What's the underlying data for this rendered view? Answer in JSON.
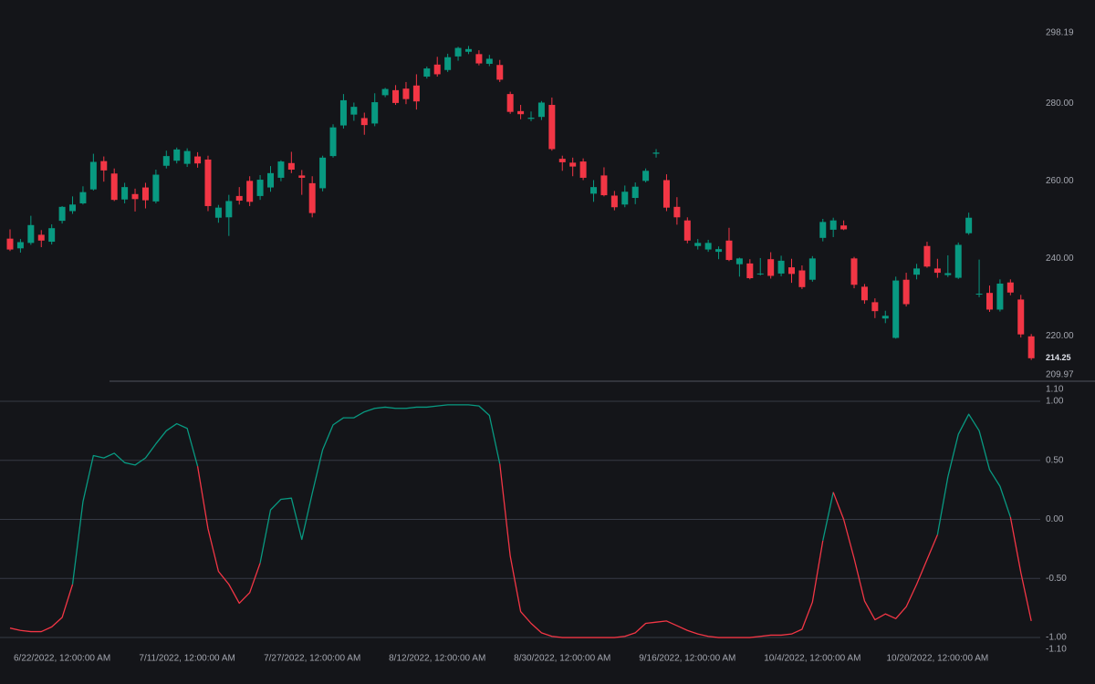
{
  "chart_data": [
    {
      "type": "candlestick",
      "open": [
        245.1,
        242.6,
        244.0,
        246.1,
        244.3,
        249.7,
        252.2,
        254.2,
        257.8,
        265.1,
        261.9,
        255.2,
        256.6,
        258.3,
        254.7,
        263.9,
        265.2,
        264.4,
        266.3,
        265.5,
        250.5,
        250.6,
        256.1,
        260.0,
        256.1,
        258.3,
        260.8,
        264.6,
        261.4,
        259.4,
        258.1,
        266.4,
        274.3,
        277.1,
        276.2,
        274.8,
        282.1,
        283.4,
        283.8,
        284.6,
        286.9,
        290.0,
        288.6,
        292.1,
        293.3,
        292.7,
        290.2,
        289.9,
        282.4,
        278.0,
        276.0,
        276.5,
        279.6,
        265.7,
        264.7,
        265.0,
        256.7,
        261.4,
        256.2,
        253.9,
        255.6,
        260.0,
        267.0,
        260.2,
        253.3,
        249.8,
        243.2,
        242.3,
        241.7,
        244.6,
        238.5,
        238.7,
        236.0,
        239.8,
        236.1,
        237.7,
        236.9,
        234.5,
        245.3,
        247.4,
        248.5,
        240.0,
        232.7,
        228.7,
        224.5,
        219.5,
        234.5,
        235.8,
        243.2,
        237.4,
        235.7,
        235.0,
        246.5,
        230.7,
        231.1,
        226.8,
        233.8,
        229.4,
        219.9
      ],
      "high": [
        247.5,
        245.0,
        251.0,
        247.3,
        248.8,
        253.5,
        256.0,
        258.6,
        267.0,
        266.3,
        263.2,
        259.5,
        258.0,
        259.5,
        262.9,
        267.8,
        268.6,
        268.4,
        267.4,
        266.5,
        253.8,
        256.4,
        258.4,
        261.2,
        261.5,
        263.8,
        265.3,
        267.5,
        262.8,
        261.2,
        266.5,
        274.6,
        282.4,
        280.2,
        277.6,
        282.6,
        284.0,
        284.7,
        285.5,
        287.5,
        289.5,
        292.0,
        292.8,
        294.6,
        294.8,
        293.7,
        292.5,
        291.2,
        283.0,
        279.6,
        277.9,
        280.6,
        281.5,
        266.5,
        266.0,
        265.8,
        260.2,
        263.5,
        257.4,
        258.8,
        259.6,
        263.2,
        268.2,
        261.7,
        255.8,
        250.6,
        245.0,
        244.8,
        243.1,
        247.9,
        240.2,
        239.8,
        240.1,
        241.6,
        240.7,
        239.9,
        238.2,
        240.6,
        250.2,
        250.5,
        249.8,
        240.4,
        233.4,
        229.7,
        226.5,
        235.3,
        236.3,
        238.6,
        244.3,
        239.9,
        240.8,
        244.1,
        251.8,
        239.7,
        233.0,
        234.6,
        234.6,
        230.6,
        220.5
      ],
      "low": [
        241.9,
        241.5,
        243.5,
        242.9,
        243.6,
        249.0,
        251.5,
        253.9,
        257.5,
        259.8,
        254.8,
        254.2,
        252.1,
        252.9,
        254.2,
        263.2,
        264.5,
        263.6,
        263.4,
        252.2,
        249.2,
        245.8,
        253.9,
        253.5,
        255.1,
        257.2,
        259.9,
        262.0,
        256.4,
        250.6,
        257.3,
        266.0,
        273.5,
        275.5,
        271.9,
        274.1,
        281.6,
        279.6,
        279.8,
        278.4,
        286.4,
        286.9,
        288.1,
        291.0,
        292.7,
        289.8,
        289.6,
        285.5,
        277.3,
        275.9,
        275.4,
        275.7,
        267.8,
        262.6,
        261.2,
        260.2,
        254.6,
        256.0,
        252.4,
        253.2,
        254.0,
        259.6,
        266.0,
        252.2,
        248.7,
        243.9,
        242.3,
        241.7,
        239.8,
        239.3,
        235.3,
        234.6,
        235.6,
        234.8,
        235.4,
        233.7,
        232.1,
        234.0,
        244.4,
        245.5,
        247.3,
        232.3,
        228.3,
        224.6,
        223.3,
        219.3,
        227.6,
        234.6,
        237.6,
        235.0,
        235.2,
        234.7,
        246.1,
        230.0,
        226.2,
        226.3,
        230.5,
        219.6,
        213.8
      ],
      "close": [
        242.3,
        244.2,
        248.6,
        244.6,
        247.8,
        253.3,
        253.9,
        257.1,
        264.9,
        262.7,
        255.1,
        258.4,
        255.3,
        255.0,
        261.6,
        266.4,
        268.1,
        267.7,
        264.5,
        253.5,
        253.1,
        254.8,
        254.9,
        254.6,
        260.3,
        262.0,
        265.0,
        262.9,
        260.8,
        251.7,
        266.0,
        273.8,
        280.8,
        279.1,
        274.4,
        280.3,
        283.7,
        280.1,
        281.1,
        280.5,
        289.0,
        287.5,
        291.9,
        294.3,
        294.0,
        290.3,
        291.5,
        286.1,
        277.8,
        277.2,
        276.3,
        280.2,
        268.2,
        264.8,
        263.7,
        260.8,
        258.4,
        256.3,
        253.2,
        257.2,
        258.5,
        262.6,
        267.3,
        253.1,
        250.6,
        244.6,
        244.0,
        244.0,
        242.4,
        239.6,
        240.0,
        234.9,
        236.1,
        235.5,
        239.4,
        236.0,
        232.6,
        240.0,
        249.4,
        249.8,
        247.5,
        233.2,
        229.2,
        226.4,
        225.2,
        234.3,
        228.2,
        237.4,
        237.9,
        236.3,
        236.2,
        243.5,
        250.5,
        230.9,
        226.8,
        233.5,
        231.2,
        220.4,
        214.25
      ],
      "up_color": "#089981",
      "down_color": "#f23645",
      "ylim": [
        209.97,
        298.19
      ],
      "yticks": [
        209.97,
        {
          "value": 220,
          "label": "220.00"
        },
        {
          "value": 240,
          "label": "240.00"
        },
        {
          "value": 260,
          "label": "260.00"
        },
        {
          "value": 280,
          "label": "280.00"
        },
        298.19
      ],
      "grid": false
    },
    {
      "type": "line",
      "categories": [
        null,
        null,
        null,
        null,
        null,
        "6/22/2022, 12:00:00 AM",
        null,
        null,
        null,
        null,
        null,
        null,
        null,
        null,
        null,
        null,
        null,
        "7/11/2022, 12:00:00 AM",
        null,
        null,
        null,
        null,
        null,
        null,
        null,
        null,
        null,
        null,
        null,
        "7/27/2022, 12:00:00 AM",
        null,
        null,
        null,
        null,
        null,
        null,
        null,
        null,
        null,
        null,
        null,
        "8/12/2022, 12:00:00 AM",
        null,
        null,
        null,
        null,
        null,
        null,
        null,
        null,
        null,
        null,
        null,
        "8/30/2022, 12:00:00 AM",
        null,
        null,
        null,
        null,
        null,
        null,
        null,
        null,
        null,
        null,
        null,
        "9/16/2022, 12:00:00 AM",
        null,
        null,
        null,
        null,
        null,
        null,
        null,
        null,
        null,
        null,
        null,
        "10/4/2022, 12:00:00 AM",
        null,
        null,
        null,
        null,
        null,
        null,
        null,
        null,
        null,
        null,
        null,
        "10/20/2022, 12:00:00 AM",
        null,
        null,
        null,
        null,
        null,
        null,
        null,
        null,
        null
      ],
      "values": [
        -0.92,
        -0.94,
        -0.95,
        -0.95,
        -0.91,
        -0.83,
        -0.55,
        0.15,
        0.54,
        0.52,
        0.56,
        0.48,
        0.46,
        0.52,
        0.64,
        0.75,
        0.81,
        0.77,
        0.45,
        -0.08,
        -0.44,
        -0.55,
        -0.71,
        -0.62,
        -0.37,
        0.08,
        0.17,
        0.18,
        -0.17,
        0.22,
        0.59,
        0.8,
        0.86,
        0.86,
        0.91,
        0.94,
        0.95,
        0.94,
        0.94,
        0.95,
        0.95,
        0.96,
        0.97,
        0.97,
        0.97,
        0.96,
        0.88,
        0.47,
        -0.31,
        -0.78,
        -0.88,
        -0.96,
        -0.99,
        -1.0,
        -1.0,
        -1.0,
        -1.0,
        -1.0,
        -1.0,
        -0.99,
        -0.96,
        -0.88,
        -0.87,
        -0.86,
        -0.9,
        -0.94,
        -0.97,
        -0.99,
        -1.0,
        -1.0,
        -1.0,
        -1.0,
        -0.99,
        -0.98,
        -0.98,
        -0.97,
        -0.93,
        -0.7,
        -0.18,
        0.23,
        0.0,
        -0.33,
        -0.69,
        -0.85,
        -0.8,
        -0.84,
        -0.74,
        -0.55,
        -0.34,
        -0.13,
        0.36,
        0.72,
        0.89,
        0.75,
        0.42,
        0.28,
        0.02,
        -0.45,
        -0.86
      ],
      "colors": [
        "#f23645",
        "#f23645",
        "#f23645",
        "#f23645",
        "#f23645",
        "#f23645",
        "#f23645",
        "#089981",
        "#089981",
        "#089981",
        "#089981",
        "#089981",
        "#089981",
        "#089981",
        "#089981",
        "#089981",
        "#089981",
        "#089981",
        "#089981",
        "#f23645",
        "#f23645",
        "#f23645",
        "#f23645",
        "#f23645",
        "#f23645",
        "#089981",
        "#089981",
        "#089981",
        "#089981",
        "#089981",
        "#089981",
        "#089981",
        "#089981",
        "#089981",
        "#089981",
        "#089981",
        "#089981",
        "#089981",
        "#089981",
        "#089981",
        "#089981",
        "#089981",
        "#089981",
        "#089981",
        "#089981",
        "#089981",
        "#089981",
        "#089981",
        "#f23645",
        "#f23645",
        "#f23645",
        "#f23645",
        "#f23645",
        "#f23645",
        "#f23645",
        "#f23645",
        "#f23645",
        "#f23645",
        "#f23645",
        "#f23645",
        "#f23645",
        "#f23645",
        "#f23645",
        "#f23645",
        "#f23645",
        "#f23645",
        "#f23645",
        "#f23645",
        "#f23645",
        "#f23645",
        "#f23645",
        "#f23645",
        "#f23645",
        "#f23645",
        "#f23645",
        "#f23645",
        "#f23645",
        "#f23645",
        "#f23645",
        "#089981",
        "#f23645",
        "#f23645",
        "#f23645",
        "#f23645",
        "#f23645",
        "#f23645",
        "#f23645",
        "#f23645",
        "#f23645",
        "#f23645",
        "#089981",
        "#089981",
        "#089981",
        "#089981",
        "#089981",
        "#089981",
        "#089981",
        "#f23645",
        "#f23645"
      ],
      "ylim": [
        -1.1,
        1.1
      ],
      "yticks": [
        {
          "value": -1.1,
          "label": "-1.10"
        },
        {
          "value": -1,
          "label": "-1.00"
        },
        {
          "value": -0.5,
          "label": "-0.50"
        },
        {
          "value": 0,
          "label": "0.00"
        },
        {
          "value": 0.5,
          "label": "0.50"
        },
        {
          "value": 1,
          "label": "1.00"
        },
        {
          "value": 1.1,
          "label": "1.10"
        }
      ],
      "grid": true
    }
  ]
}
